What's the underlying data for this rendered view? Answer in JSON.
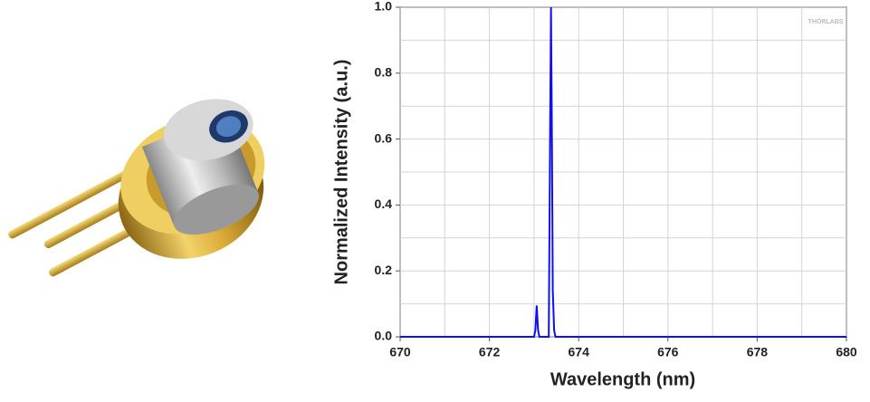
{
  "chart_data": {
    "type": "line",
    "watermark": "THORLABS",
    "x_label": "Wavelength (nm)",
    "y_label": "Normalized Intensity (a.u.)",
    "x": [
      670,
      673.0,
      673.03,
      673.06,
      673.09,
      673.12,
      673.33,
      673.36,
      673.38,
      673.4,
      673.42,
      673.45,
      673.48,
      680
    ],
    "series": [
      {
        "color": "#1010ee",
        "values": [
          0,
          0,
          0.02,
          0.095,
          0.02,
          0,
          0,
          0.62,
          1.0,
          0.62,
          0.14,
          0.02,
          0,
          0
        ]
      }
    ],
    "xlim": [
      670,
      680
    ],
    "xticks": [
      670,
      672,
      674,
      676,
      678,
      680
    ],
    "x_minor_ticks": [
      671,
      673,
      675,
      677,
      679
    ],
    "ylim": [
      0,
      1.0
    ],
    "yticks": [
      {
        "value": 0,
        "label": "0.0"
      },
      0.2,
      0.4,
      0.6,
      0.8,
      {
        "value": 1.0,
        "label": "1.0"
      }
    ],
    "y_minor_ticks": [
      0.1,
      0.3,
      0.5,
      0.7,
      0.9
    ],
    "grid": true
  }
}
